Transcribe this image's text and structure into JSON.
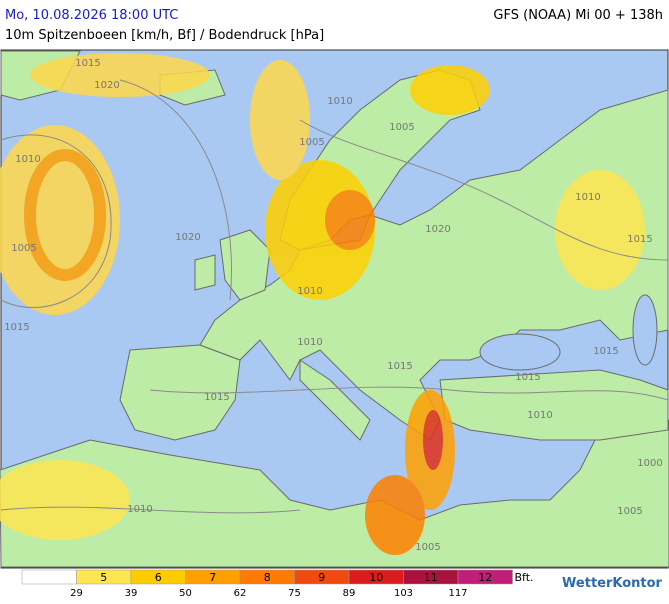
{
  "header": {
    "datetime": "Mo, 10.08.2026 18:00 UTC",
    "title": "10m Spitzenboeen [km/h, Bf] / Bodendruck [hPa]",
    "model": "GFS (NOAA) Mi 00 + 138h"
  },
  "isobar_labels": [
    "1015",
    "1020",
    "1010",
    "1005",
    "1015",
    "1005",
    "1005",
    "1020",
    "1020",
    "1010",
    "1010",
    "1015",
    "1015",
    "1015",
    "1015",
    "1010",
    "1015",
    "1010",
    "1000",
    "1010",
    "1005",
    "1005",
    "1010"
  ],
  "legend": {
    "unit": "Bft.",
    "colors": [
      "#ffffff",
      "#ffe650",
      "#ffcc00",
      "#ffa000",
      "#ff7a00",
      "#f04a10",
      "#dc1c1c",
      "#a8123c",
      "#c01e78"
    ],
    "bft": [
      5,
      6,
      7,
      8,
      9,
      10,
      11,
      12
    ],
    "kmh": [
      29,
      39,
      50,
      62,
      75,
      89,
      103,
      117
    ]
  },
  "logo": "WetterKontor"
}
